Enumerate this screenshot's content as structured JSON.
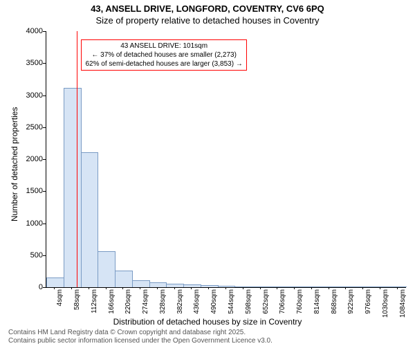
{
  "chart": {
    "type": "histogram",
    "title_main": "43, ANSELL DRIVE, LONGFORD, COVENTRY, CV6 6PQ",
    "title_sub": "Size of property relative to detached houses in Coventry",
    "ylabel": "Number of detached properties",
    "xlabel": "Distribution of detached houses by size in Coventry",
    "title_fontsize": 13,
    "label_fontsize": 12,
    "tick_fontsize": 11,
    "background_color": "#ffffff",
    "bar_fill": "#d6e4f5",
    "bar_stroke": "#7a9bc4",
    "highlight_color": "#ff0000",
    "ylim": [
      0,
      4000
    ],
    "ytick_step": 500,
    "yticks": [
      "0",
      "500",
      "1000",
      "1500",
      "2000",
      "2500",
      "3000",
      "3500",
      "4000"
    ],
    "xticks": [
      "4sqm",
      "58sqm",
      "112sqm",
      "166sqm",
      "220sqm",
      "274sqm",
      "328sqm",
      "382sqm",
      "436sqm",
      "490sqm",
      "544sqm",
      "598sqm",
      "652sqm",
      "706sqm",
      "760sqm",
      "814sqm",
      "868sqm",
      "922sqm",
      "976sqm",
      "1030sqm",
      "1084sqm"
    ],
    "values": [
      140,
      3100,
      2100,
      550,
      250,
      100,
      60,
      40,
      30,
      20,
      15,
      5,
      5,
      3,
      3,
      2,
      2,
      1,
      1,
      1,
      1
    ],
    "highlight_x_sqm": 101,
    "annotation": {
      "line1": "43 ANSELL DRIVE: 101sqm",
      "line2": "← 37% of detached houses are smaller (2,273)",
      "line3": "62% of semi-detached houses are larger (3,853) →",
      "border_color": "#ff0000"
    },
    "footer_line1": "Contains HM Land Registry data © Crown copyright and database right 2025.",
    "footer_line2": "Contains public sector information licensed under the Open Government Licence v3.0."
  }
}
